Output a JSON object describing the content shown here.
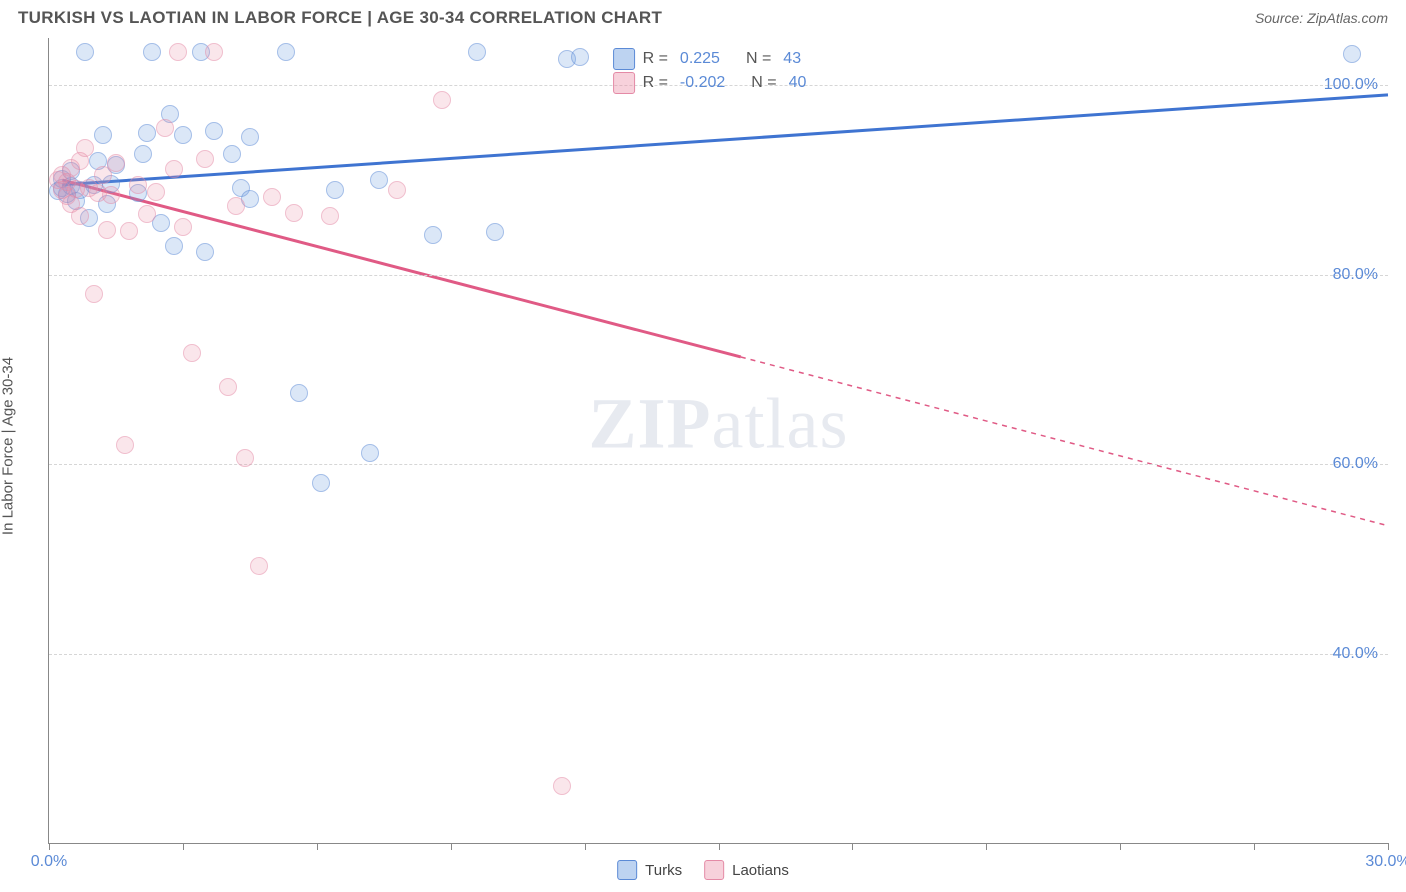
{
  "header": {
    "title": "TURKISH VS LAOTIAN IN LABOR FORCE | AGE 30-34 CORRELATION CHART",
    "source": "Source: ZipAtlas.com"
  },
  "chart": {
    "type": "scatter",
    "ylabel": "In Labor Force | Age 30-34",
    "watermark_a": "ZIP",
    "watermark_b": "atlas",
    "xlim": [
      0,
      30
    ],
    "ylim": [
      20,
      105
    ],
    "x_tick_label_min": "0.0%",
    "x_tick_label_max": "30.0%",
    "x_tick_positions": [
      0,
      3,
      6,
      9,
      12,
      15,
      18,
      21,
      24,
      27,
      30
    ],
    "y_ticks": [
      {
        "v": 40,
        "label": "40.0%"
      },
      {
        "v": 60,
        "label": "60.0%"
      },
      {
        "v": 80,
        "label": "80.0%"
      },
      {
        "v": 100,
        "label": "100.0%"
      }
    ],
    "grid_color": "#d6d6d6",
    "background_color": "#ffffff",
    "series": [
      {
        "name": "Turks",
        "fill": "rgba(108,158,224,0.45)",
        "stroke": "#5b8ad6",
        "line_color": "#3f74d1",
        "r_label": "R =",
        "r_value": "0.225",
        "n_label": "N =",
        "n_value": "43",
        "trend": {
          "x1": 0.3,
          "y1": 89.5,
          "x2": 30,
          "y2": 99,
          "solid_until": 30
        },
        "points": [
          [
            0.2,
            88.8
          ],
          [
            0.3,
            89.2
          ],
          [
            0.3,
            90.1
          ],
          [
            0.4,
            88.5
          ],
          [
            0.5,
            89.4
          ],
          [
            0.5,
            91.0
          ],
          [
            0.6,
            87.8
          ],
          [
            0.7,
            89.0
          ],
          [
            0.8,
            103.5
          ],
          [
            0.9,
            86.0
          ],
          [
            1.0,
            89.5
          ],
          [
            1.1,
            92.0
          ],
          [
            1.2,
            94.8
          ],
          [
            1.3,
            87.5
          ],
          [
            1.4,
            89.6
          ],
          [
            1.5,
            91.6
          ],
          [
            2.0,
            88.6
          ],
          [
            2.1,
            92.8
          ],
          [
            2.2,
            95.0
          ],
          [
            2.3,
            103.5
          ],
          [
            2.5,
            85.5
          ],
          [
            2.7,
            97.0
          ],
          [
            2.8,
            83.0
          ],
          [
            3.0,
            94.8
          ],
          [
            3.4,
            103.5
          ],
          [
            3.5,
            82.4
          ],
          [
            3.7,
            95.2
          ],
          [
            4.1,
            92.8
          ],
          [
            4.3,
            89.2
          ],
          [
            4.5,
            88.0
          ],
          [
            4.5,
            94.5
          ],
          [
            5.3,
            103.5
          ],
          [
            5.6,
            67.5
          ],
          [
            6.1,
            58.0
          ],
          [
            6.4,
            89.0
          ],
          [
            7.2,
            61.2
          ],
          [
            7.4,
            90.0
          ],
          [
            8.6,
            84.2
          ],
          [
            9.6,
            103.5
          ],
          [
            10.0,
            84.5
          ],
          [
            11.6,
            102.8
          ],
          [
            11.9,
            103.0
          ],
          [
            29.2,
            103.3
          ]
        ]
      },
      {
        "name": "Laotians",
        "fill": "rgba(235,140,165,0.40)",
        "stroke": "#e48aa6",
        "line_color": "#e05a85",
        "r_label": "R =",
        "r_value": "-0.202",
        "n_label": "N =",
        "n_value": "40",
        "trend": {
          "x1": 0.3,
          "y1": 90.0,
          "x2": 30,
          "y2": 53.5,
          "solid_until": 15.5
        },
        "points": [
          [
            0.2,
            90.0
          ],
          [
            0.3,
            89.0
          ],
          [
            0.3,
            90.5
          ],
          [
            0.4,
            88.3
          ],
          [
            0.4,
            89.8
          ],
          [
            0.5,
            91.3
          ],
          [
            0.5,
            87.5
          ],
          [
            0.6,
            89.1
          ],
          [
            0.7,
            92.0
          ],
          [
            0.7,
            86.2
          ],
          [
            0.8,
            93.4
          ],
          [
            0.9,
            89.2
          ],
          [
            1.0,
            78.0
          ],
          [
            1.1,
            88.6
          ],
          [
            1.2,
            90.5
          ],
          [
            1.3,
            84.7
          ],
          [
            1.4,
            88.4
          ],
          [
            1.5,
            91.8
          ],
          [
            1.7,
            62.0
          ],
          [
            1.8,
            84.6
          ],
          [
            2.0,
            89.5
          ],
          [
            2.2,
            86.4
          ],
          [
            2.4,
            88.7
          ],
          [
            2.6,
            95.5
          ],
          [
            2.8,
            91.2
          ],
          [
            2.9,
            103.5
          ],
          [
            3.0,
            85.0
          ],
          [
            3.2,
            71.7
          ],
          [
            3.5,
            92.2
          ],
          [
            3.7,
            103.5
          ],
          [
            4.0,
            68.2
          ],
          [
            4.2,
            87.3
          ],
          [
            4.4,
            60.6
          ],
          [
            4.7,
            49.2
          ],
          [
            5.0,
            88.2
          ],
          [
            5.5,
            86.5
          ],
          [
            6.3,
            86.2
          ],
          [
            7.8,
            89.0
          ],
          [
            8.8,
            98.5
          ],
          [
            11.5,
            26.0
          ]
        ]
      }
    ]
  },
  "legend_bottom": [
    {
      "label": "Turks"
    },
    {
      "label": "Laotians"
    }
  ]
}
